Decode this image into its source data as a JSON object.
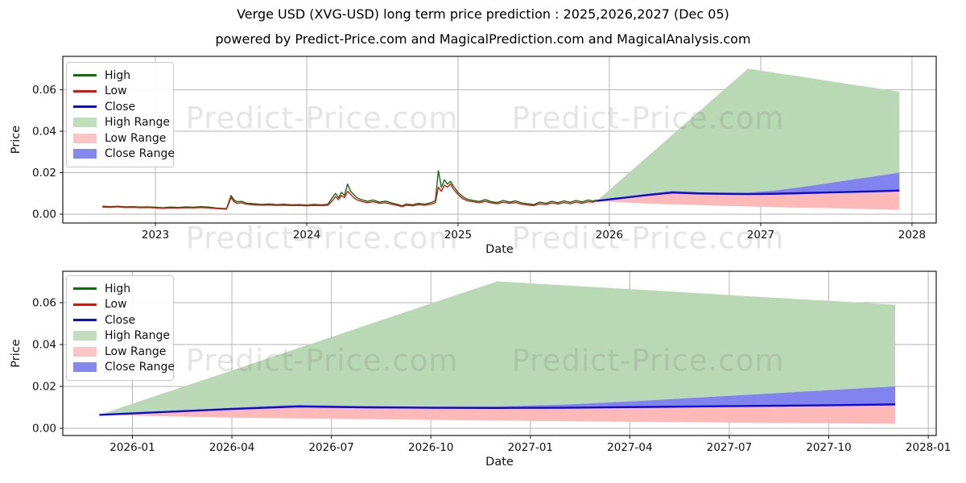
{
  "header": {
    "title": "Verge USD (XVG-USD) long term price prediction : 2025,2026,2027 (Dec 05)",
    "subtitle": "powered by Predict-Price.com and MagicalPrediction.com and MagicalAnalysis.com"
  },
  "watermark": {
    "text": "Predict-Price.com"
  },
  "colors": {
    "high_line": "#0a700a",
    "low_line": "#dd1111",
    "close_line": "#0d0dcf",
    "high_range": "#b9d8b4",
    "low_range": "#fdb8b8",
    "close_range": "#8184ef",
    "legend_high_range": "#c0ddbc",
    "legend_low_range": "#fbc5c5",
    "legend_close_range": "#8487ee",
    "grid": "#b6b6b6",
    "axis_border": "#1a1a1a"
  },
  "chart_data": [
    {
      "type": "line",
      "id": "overview",
      "title": "",
      "xlabel": "Date",
      "ylabel": "Price",
      "grid": true,
      "legend_position": "upper left",
      "xlim": [
        2022.388,
        2028.16
      ],
      "ylim": [
        -0.00427,
        0.0761
      ],
      "x_ticks": [
        {
          "v": 2023,
          "label": "2023"
        },
        {
          "v": 2024,
          "label": "2024"
        },
        {
          "v": 2025,
          "label": "2025"
        },
        {
          "v": 2026,
          "label": "2026"
        },
        {
          "v": 2027,
          "label": "2027"
        },
        {
          "v": 2028,
          "label": "2028"
        }
      ],
      "y_ticks": [
        {
          "v": 0.0,
          "label": "0.00"
        },
        {
          "v": 0.02,
          "label": "0.02"
        },
        {
          "v": 0.04,
          "label": "0.04"
        },
        {
          "v": 0.06,
          "label": "0.06"
        }
      ],
      "legend": [
        {
          "label": "High",
          "swatch": "line",
          "color": "#0a700a"
        },
        {
          "label": "Low",
          "swatch": "line",
          "color": "#dd1111"
        },
        {
          "label": "Close",
          "swatch": "line",
          "color": "#0d0dcf"
        },
        {
          "label": "High Range",
          "swatch": "patch",
          "color": "#c0ddbc"
        },
        {
          "label": "Low Range",
          "swatch": "patch",
          "color": "#fbc5c5"
        },
        {
          "label": "Close Range",
          "swatch": "patch",
          "color": "#8487ee"
        }
      ],
      "series": {
        "historical": {
          "t": [
            2022.65,
            2022.7,
            2022.75,
            2022.8,
            2022.85,
            2022.9,
            2022.95,
            2023.0,
            2023.05,
            2023.1,
            2023.15,
            2023.2,
            2023.25,
            2023.3,
            2023.35,
            2023.4,
            2023.44,
            2023.47,
            2023.5,
            2023.52,
            2023.54,
            2023.57,
            2023.6,
            2023.65,
            2023.7,
            2023.75,
            2023.8,
            2023.85,
            2023.9,
            2023.95,
            2024.0,
            2024.05,
            2024.1,
            2024.14,
            2024.17,
            2024.19,
            2024.21,
            2024.23,
            2024.25,
            2024.27,
            2024.29,
            2024.31,
            2024.33,
            2024.36,
            2024.4,
            2024.44,
            2024.48,
            2024.52,
            2024.56,
            2024.6,
            2024.63,
            2024.66,
            2024.7,
            2024.74,
            2024.78,
            2024.82,
            2024.85,
            2024.87,
            2024.89,
            2024.91,
            2024.93,
            2024.95,
            2024.97,
            2025.0,
            2025.03,
            2025.06,
            2025.1,
            2025.14,
            2025.18,
            2025.22,
            2025.26,
            2025.3,
            2025.34,
            2025.38,
            2025.42,
            2025.46,
            2025.5,
            2025.54,
            2025.58,
            2025.62,
            2025.66,
            2025.7,
            2025.74,
            2025.78,
            2025.82,
            2025.86,
            2025.89,
            2025.917
          ],
          "low": [
            0.0034,
            0.0033,
            0.0035,
            0.0032,
            0.0033,
            0.0031,
            0.0032,
            0.003,
            0.0028,
            0.003,
            0.0029,
            0.0031,
            0.003,
            0.0032,
            0.003,
            0.0027,
            0.0025,
            0.0024,
            0.008,
            0.006,
            0.0052,
            0.0055,
            0.0048,
            0.0045,
            0.0043,
            0.0044,
            0.0042,
            0.0043,
            0.0041,
            0.0042,
            0.004,
            0.0042,
            0.0041,
            0.0043,
            0.0065,
            0.0085,
            0.007,
            0.009,
            0.008,
            0.011,
            0.0095,
            0.008,
            0.007,
            0.0062,
            0.0055,
            0.006,
            0.0052,
            0.0055,
            0.0048,
            0.0042,
            0.0036,
            0.0043,
            0.004,
            0.0046,
            0.0043,
            0.0048,
            0.0055,
            0.013,
            0.011,
            0.014,
            0.013,
            0.0145,
            0.012,
            0.0095,
            0.0075,
            0.0065,
            0.006,
            0.0055,
            0.0062,
            0.0054,
            0.005,
            0.0058,
            0.0052,
            0.0056,
            0.0048,
            0.0044,
            0.0041,
            0.005,
            0.0046,
            0.0054,
            0.0049,
            0.0056,
            0.005,
            0.0058,
            0.0052,
            0.006,
            0.0058,
            0.0064
          ],
          "high": [
            0.0038,
            0.0036,
            0.0038,
            0.0035,
            0.0036,
            0.0034,
            0.0035,
            0.0033,
            0.0031,
            0.0034,
            0.0032,
            0.0035,
            0.0033,
            0.0036,
            0.0034,
            0.003,
            0.0028,
            0.0027,
            0.009,
            0.0068,
            0.006,
            0.0062,
            0.0053,
            0.005,
            0.0047,
            0.0049,
            0.0046,
            0.0048,
            0.0045,
            0.0046,
            0.0044,
            0.0047,
            0.0045,
            0.0048,
            0.008,
            0.01,
            0.008,
            0.0105,
            0.009,
            0.0145,
            0.011,
            0.0095,
            0.008,
            0.007,
            0.0062,
            0.0068,
            0.0058,
            0.0063,
            0.0054,
            0.0047,
            0.004,
            0.0049,
            0.0045,
            0.0052,
            0.0048,
            0.0055,
            0.0065,
            0.021,
            0.013,
            0.0165,
            0.0145,
            0.0158,
            0.0135,
            0.0105,
            0.0085,
            0.0072,
            0.0066,
            0.0061,
            0.007,
            0.006,
            0.0056,
            0.0066,
            0.0058,
            0.0064,
            0.0054,
            0.005,
            0.0046,
            0.0058,
            0.0052,
            0.0062,
            0.0055,
            0.0064,
            0.0057,
            0.0066,
            0.0059,
            0.0068,
            0.0063,
            0.0068
          ]
        },
        "forecast": {
          "t": [
            2025.917,
            2026.083,
            2026.25,
            2026.417,
            2026.583,
            2026.75,
            2026.917,
            2027.083,
            2027.25,
            2027.417,
            2027.583,
            2027.75,
            2027.917
          ],
          "close": [
            0.0064,
            0.0078,
            0.0092,
            0.0104,
            0.01,
            0.0098,
            0.0097,
            0.0098,
            0.0101,
            0.0104,
            0.0107,
            0.011,
            0.0114
          ],
          "close_top": [
            0.0064,
            0.0081,
            0.0098,
            0.0112,
            0.0106,
            0.0104,
            0.0104,
            0.0113,
            0.0128,
            0.0146,
            0.0164,
            0.0182,
            0.02
          ],
          "low_bottom": [
            0.0064,
            0.0057,
            0.0051,
            0.0047,
            0.0044,
            0.004,
            0.0037,
            0.0034,
            0.0031,
            0.0029,
            0.0026,
            0.0024,
            0.0021
          ],
          "high_top": [
            0.0064,
            0.017,
            0.0276,
            0.0383,
            0.0489,
            0.0596,
            0.0702,
            0.0683,
            0.0665,
            0.0646,
            0.0627,
            0.0609,
            0.059
          ]
        }
      }
    },
    {
      "type": "line",
      "id": "forecast-detail",
      "title": "",
      "xlabel": "Date",
      "ylabel": "Price",
      "grid": true,
      "legend_position": "upper left",
      "xlim": [
        2025.825,
        2028.02
      ],
      "ylim": [
        -0.00346,
        0.075
      ],
      "x_ticks": [
        {
          "v": 2026.0,
          "label": "2026-01"
        },
        {
          "v": 2026.25,
          "label": "2026-04"
        },
        {
          "v": 2026.5,
          "label": "2026-07"
        },
        {
          "v": 2026.75,
          "label": "2026-10"
        },
        {
          "v": 2027.0,
          "label": "2027-01"
        },
        {
          "v": 2027.25,
          "label": "2027-04"
        },
        {
          "v": 2027.5,
          "label": "2027-07"
        },
        {
          "v": 2027.75,
          "label": "2027-10"
        },
        {
          "v": 2028.0,
          "label": "2028-01"
        }
      ],
      "y_ticks": [
        {
          "v": 0.0,
          "label": "0.00"
        },
        {
          "v": 0.02,
          "label": "0.02"
        },
        {
          "v": 0.04,
          "label": "0.04"
        },
        {
          "v": 0.06,
          "label": "0.06"
        }
      ],
      "legend": [
        {
          "label": "High",
          "swatch": "line",
          "color": "#0a700a"
        },
        {
          "label": "Low",
          "swatch": "line",
          "color": "#dd1111"
        },
        {
          "label": "Close",
          "swatch": "line",
          "color": "#0d0dcf"
        },
        {
          "label": "High Range",
          "swatch": "patch",
          "color": "#c0ddbc"
        },
        {
          "label": "Low Range",
          "swatch": "patch",
          "color": "#fbc5c5"
        },
        {
          "label": "Close Range",
          "swatch": "patch",
          "color": "#8487ee"
        }
      ],
      "series": {
        "forecast": {
          "t": [
            2025.917,
            2026.083,
            2026.25,
            2026.417,
            2026.583,
            2026.75,
            2026.917,
            2027.083,
            2027.25,
            2027.417,
            2027.583,
            2027.75,
            2027.917
          ],
          "close": [
            0.0064,
            0.0078,
            0.0092,
            0.0104,
            0.01,
            0.0098,
            0.0097,
            0.0098,
            0.0101,
            0.0104,
            0.0107,
            0.011,
            0.0114
          ],
          "close_top": [
            0.0064,
            0.0081,
            0.0098,
            0.0112,
            0.0106,
            0.0104,
            0.0104,
            0.0113,
            0.0128,
            0.0146,
            0.0164,
            0.0182,
            0.02
          ],
          "low_bottom": [
            0.0064,
            0.0057,
            0.0051,
            0.0047,
            0.0044,
            0.004,
            0.0037,
            0.0034,
            0.0031,
            0.0029,
            0.0026,
            0.0024,
            0.0021
          ],
          "high_top": [
            0.0064,
            0.017,
            0.0276,
            0.0383,
            0.0489,
            0.0596,
            0.0702,
            0.0683,
            0.0665,
            0.0646,
            0.0627,
            0.0609,
            0.059
          ]
        }
      }
    }
  ]
}
